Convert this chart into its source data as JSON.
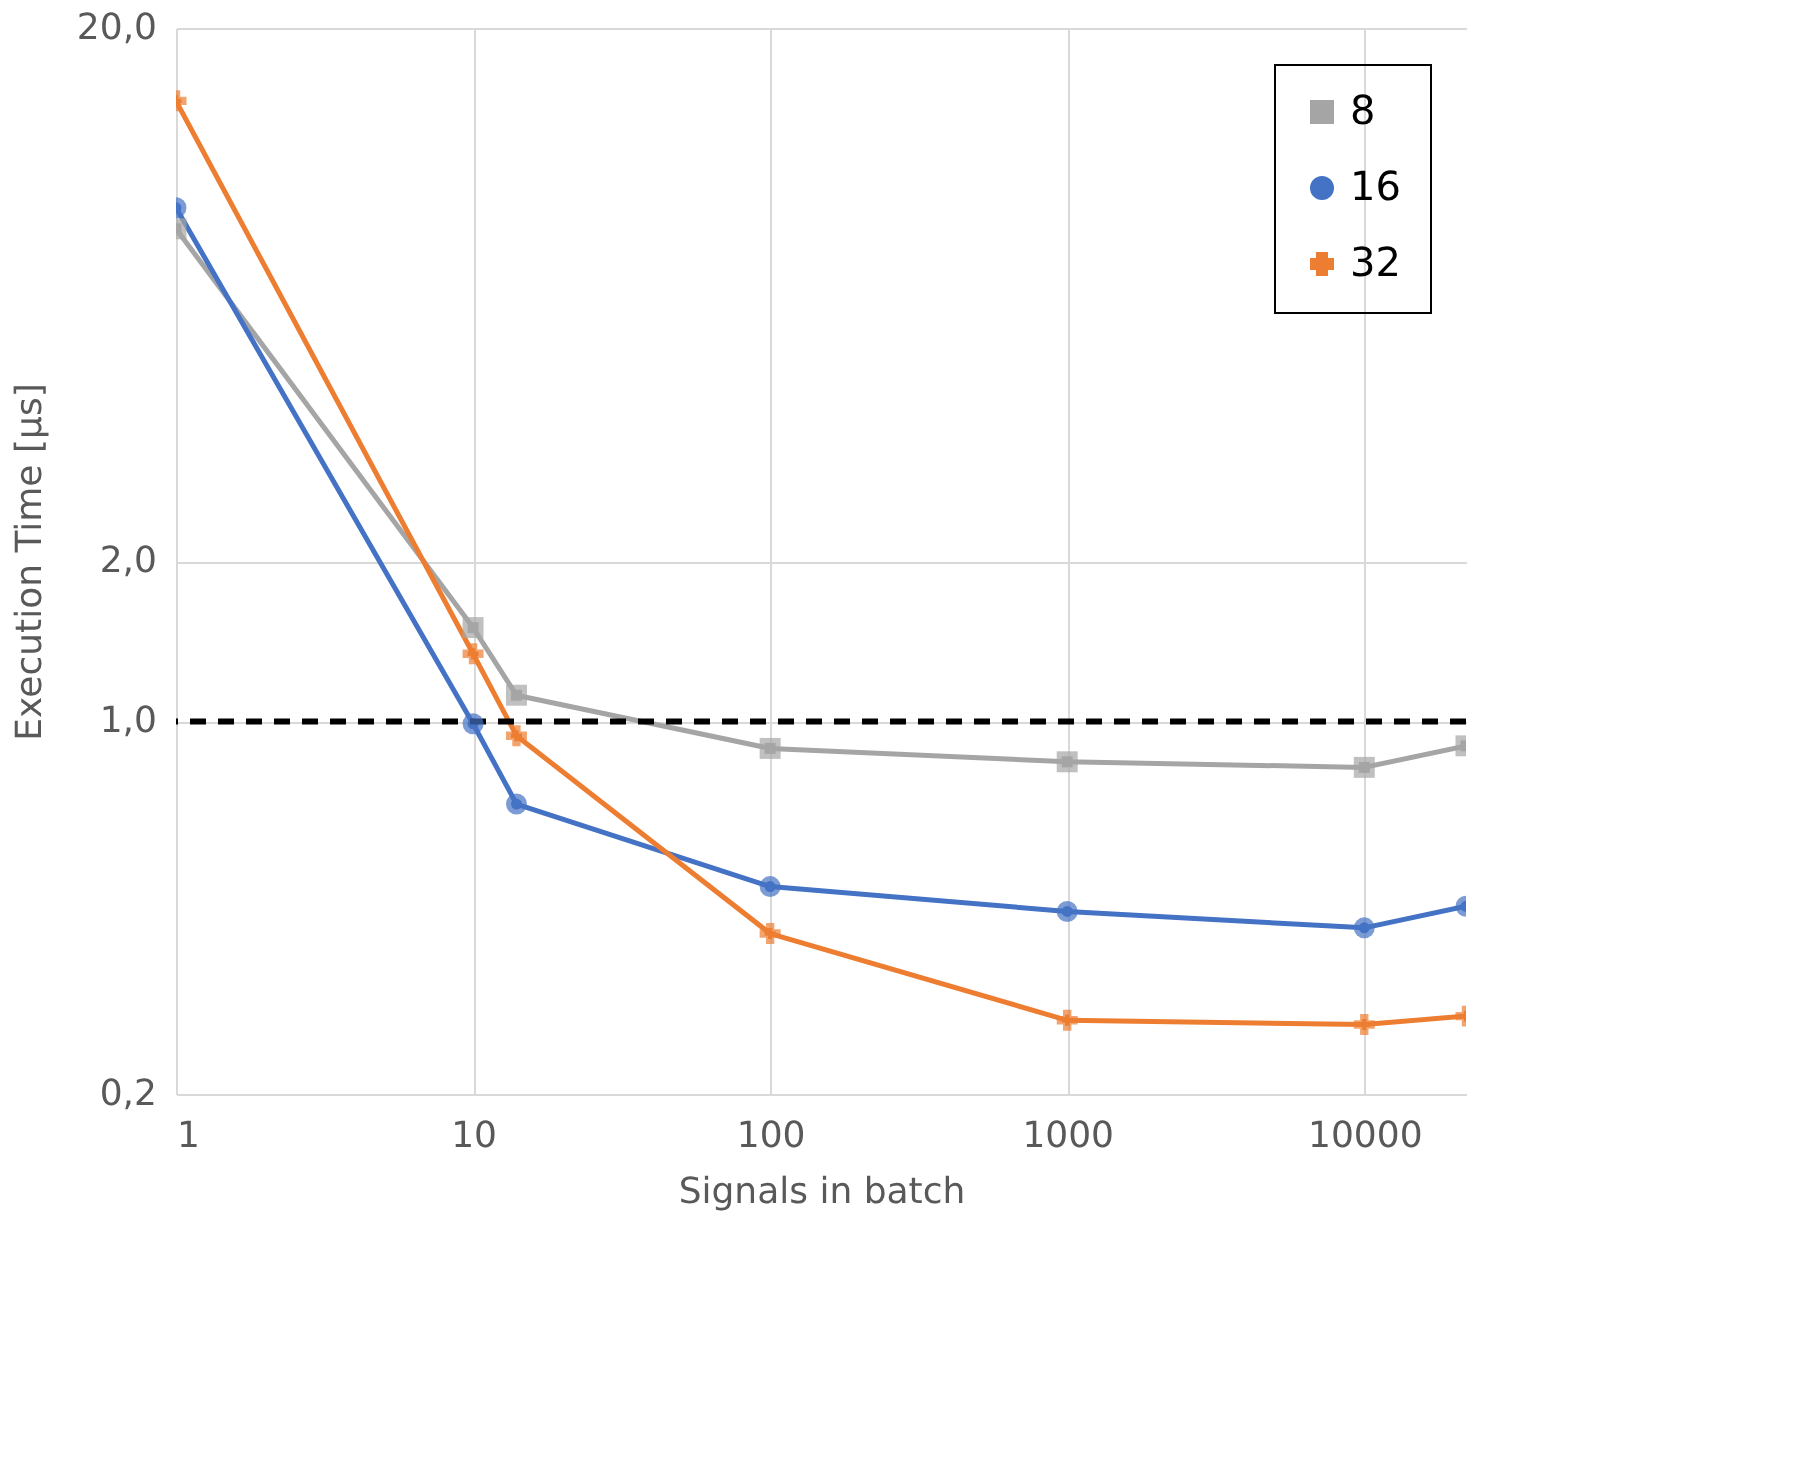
{
  "chart_data": {
    "type": "line",
    "xlabel": "Signals in batch",
    "ylabel": "Execution Time [µs]",
    "x": [
      1,
      10,
      14,
      100,
      1000,
      10000,
      22000
    ],
    "series": [
      {
        "name": "8",
        "color": "#a5a5a5",
        "marker": "square",
        "values": [
          8.4,
          1.5,
          1.12,
          0.89,
          0.84,
          0.82,
          0.9
        ]
      },
      {
        "name": "16",
        "color": "#4472c4",
        "marker": "circle",
        "values": [
          9.2,
          0.99,
          0.7,
          0.49,
          0.44,
          0.41,
          0.45
        ]
      },
      {
        "name": "32",
        "color": "#ed7d31",
        "marker": "cross",
        "values": [
          14.6,
          1.34,
          0.94,
          0.4,
          0.275,
          0.27,
          0.28
        ]
      }
    ],
    "log": "xy",
    "xlim": [
      1,
      22000
    ],
    "ylim": [
      0.2,
      20
    ],
    "xticks": [
      1,
      10,
      100,
      1000,
      10000
    ],
    "yticks": [
      {
        "value": 0.2,
        "label": "0,2"
      },
      {
        "value": 1,
        "label": "1,0"
      },
      {
        "value": 2,
        "label": "2,0"
      },
      {
        "value": 20,
        "label": "20,0"
      }
    ],
    "ref_lines": [
      {
        "axis": "y",
        "value": 1,
        "color": "#000000",
        "line_style": "dashed"
      }
    ],
    "grid": true,
    "legend": "top right"
  }
}
